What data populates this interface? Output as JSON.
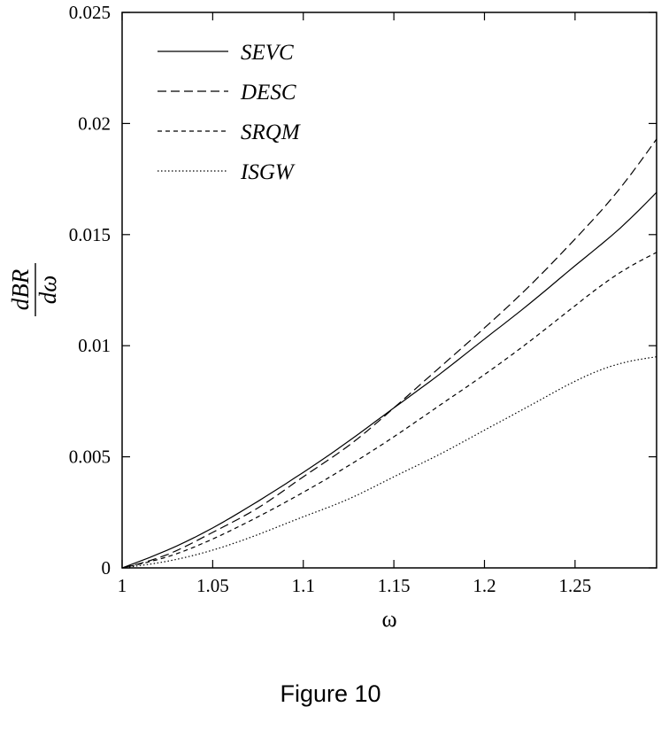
{
  "chart_data": {
    "type": "line",
    "xlabel": "ω",
    "ylabel_numerator": "dBR",
    "ylabel_denominator": "dω",
    "xlim": [
      1.0,
      1.295
    ],
    "ylim": [
      0,
      0.025
    ],
    "x_ticks": [
      1,
      1.05,
      1.1,
      1.15,
      1.2,
      1.25
    ],
    "x_tick_labels": [
      "1",
      "1.05",
      "1.1",
      "1.15",
      "1.2",
      "1.25"
    ],
    "y_ticks": [
      0,
      0.005,
      0.01,
      0.015,
      0.02,
      0.025
    ],
    "y_tick_labels": [
      "0",
      "0.005",
      "0.01",
      "0.015",
      "0.02",
      "0.025"
    ],
    "grid": false,
    "legend_position": "top-left",
    "x": [
      1.0,
      1.025,
      1.05,
      1.075,
      1.1,
      1.125,
      1.15,
      1.175,
      1.2,
      1.225,
      1.25,
      1.275,
      1.295
    ],
    "series": [
      {
        "name": "SEVC",
        "dash": "solid",
        "values": [
          0,
          0.0008,
          0.0018,
          0.003,
          0.0043,
          0.0057,
          0.0072,
          0.0087,
          0.0103,
          0.0119,
          0.0136,
          0.0153,
          0.0169
        ]
      },
      {
        "name": "DESC",
        "dash": "long-dash",
        "values": [
          0,
          0.0006,
          0.0016,
          0.0027,
          0.0041,
          0.0055,
          0.0072,
          0.009,
          0.0108,
          0.0127,
          0.0148,
          0.0171,
          0.0193
        ]
      },
      {
        "name": "SRQM",
        "dash": "short-dash",
        "values": [
          0,
          0.0005,
          0.0013,
          0.0023,
          0.0034,
          0.0046,
          0.0059,
          0.0073,
          0.0087,
          0.0102,
          0.0118,
          0.0133,
          0.0142
        ]
      },
      {
        "name": "ISGW",
        "dash": "dotted",
        "values": [
          0,
          0.0003,
          0.0008,
          0.0015,
          0.0023,
          0.0031,
          0.0041,
          0.0051,
          0.0062,
          0.0073,
          0.0084,
          0.0092,
          0.0095
        ]
      }
    ]
  },
  "caption": "Figure 10"
}
